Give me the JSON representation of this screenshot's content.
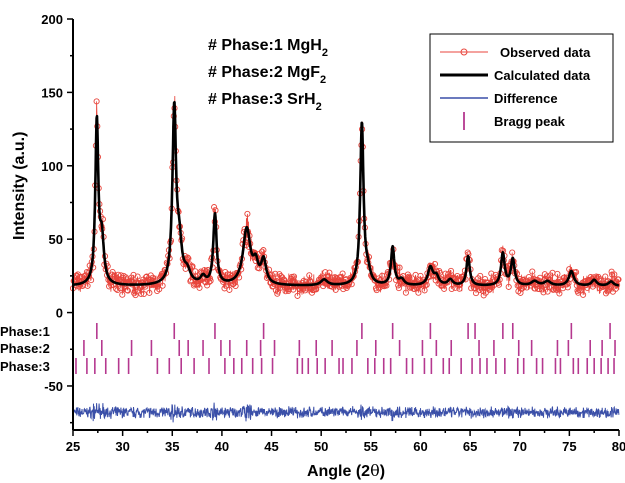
{
  "chart_data": {
    "type": "line",
    "xlabel_main": "Angle (2",
    "xlabel_theta": "θ",
    "xlabel_close": ")",
    "ylabel": "Intensity (a.u.)",
    "xlim": [
      25,
      80
    ],
    "ylim": [
      -80,
      200
    ],
    "x_ticks": [
      25,
      30,
      35,
      40,
      45,
      50,
      55,
      60,
      65,
      70,
      75,
      80
    ],
    "y_ticks": [
      -50,
      0,
      50,
      100,
      150,
      200
    ],
    "phase_notes": [
      {
        "prefix": "# Phase:1  MgH",
        "sub": "2"
      },
      {
        "prefix": "# Phase:2 MgF",
        "sub": "2"
      },
      {
        "prefix": "# Phase:3 SrH",
        "sub": "2"
      }
    ],
    "legend": [
      {
        "label": "Observed data",
        "color": "#e8453c",
        "style": "line-circle"
      },
      {
        "label": "Calculated data",
        "color": "#000000",
        "style": "thick-line"
      },
      {
        "label": "Difference",
        "color": "#3a4fa8",
        "style": "line"
      },
      {
        "label": "Bragg peak",
        "color": "#b5388f",
        "style": "tick"
      }
    ],
    "baseline": 18,
    "peaks": [
      {
        "x": 27.4,
        "h": 110,
        "w": 0.18
      },
      {
        "x": 27.9,
        "h": 30,
        "w": 0.25
      },
      {
        "x": 35.2,
        "h": 118,
        "w": 0.22
      },
      {
        "x": 35.7,
        "h": 25,
        "w": 0.3
      },
      {
        "x": 36.5,
        "h": 8,
        "w": 0.4
      },
      {
        "x": 39.3,
        "h": 48,
        "w": 0.2
      },
      {
        "x": 38.1,
        "h": 5,
        "w": 0.3
      },
      {
        "x": 42.5,
        "h": 38,
        "w": 0.45
      },
      {
        "x": 43.4,
        "h": 12,
        "w": 0.3
      },
      {
        "x": 44.2,
        "h": 16,
        "w": 0.3
      },
      {
        "x": 50.3,
        "h": 4,
        "w": 0.4
      },
      {
        "x": 54.1,
        "h": 110,
        "w": 0.2
      },
      {
        "x": 54.7,
        "h": 8,
        "w": 0.3
      },
      {
        "x": 57.2,
        "h": 26,
        "w": 0.2
      },
      {
        "x": 58.1,
        "h": 4,
        "w": 0.3
      },
      {
        "x": 61.0,
        "h": 12,
        "w": 0.3
      },
      {
        "x": 61.6,
        "h": 6,
        "w": 0.3
      },
      {
        "x": 63.0,
        "h": 4,
        "w": 0.3
      },
      {
        "x": 64.8,
        "h": 20,
        "w": 0.2
      },
      {
        "x": 68.3,
        "h": 22,
        "w": 0.22
      },
      {
        "x": 69.3,
        "h": 18,
        "w": 0.22
      },
      {
        "x": 71.5,
        "h": 3,
        "w": 0.4
      },
      {
        "x": 72.8,
        "h": 3,
        "w": 0.4
      },
      {
        "x": 75.2,
        "h": 10,
        "w": 0.3
      },
      {
        "x": 77.5,
        "h": 4,
        "w": 0.3
      },
      {
        "x": 79.2,
        "h": 3,
        "w": 0.3
      }
    ],
    "difference_offset": -68,
    "bragg_rows": [
      {
        "label": "Phase:1",
        "positions": [
          27.4,
          35.2,
          39.3,
          44.2,
          54.1,
          57.2,
          61.0,
          64.8,
          65.5,
          68.3,
          69.3,
          75.2,
          79.1
        ]
      },
      {
        "label": "Phase:2",
        "positions": [
          26.1,
          27.9,
          30.9,
          32.9,
          35.7,
          36.6,
          38.1,
          39.9,
          40.8,
          42.5,
          43.9,
          45.3,
          47.8,
          49.5,
          51.1,
          53.6,
          55.5,
          57.9,
          60.2,
          61.6,
          63.1,
          65.9,
          67.4,
          69.9,
          71.2,
          73.8,
          74.9,
          77.1,
          78.3,
          79.6
        ]
      },
      {
        "label": "Phase:3",
        "positions": [
          25.3,
          26.4,
          27.2,
          28.3,
          29.6,
          30.6,
          33.5,
          34.7,
          35.9,
          37.2,
          38.7,
          40.3,
          41.2,
          42.0,
          43.1,
          44.0,
          45.1,
          47.6,
          48.1,
          48.7,
          49.6,
          50.4,
          51.8,
          52.2,
          53.1,
          54.7,
          55.4,
          56.3,
          57.0,
          58.6,
          59.2,
          60.4,
          61.1,
          62.3,
          62.9,
          64.1,
          65.2,
          66.0,
          66.7,
          67.6,
          68.5,
          69.8,
          70.4,
          71.7,
          72.3,
          73.6,
          74.1,
          75.4,
          75.9,
          76.8,
          77.5,
          78.2,
          78.9,
          79.5
        ]
      }
    ]
  }
}
